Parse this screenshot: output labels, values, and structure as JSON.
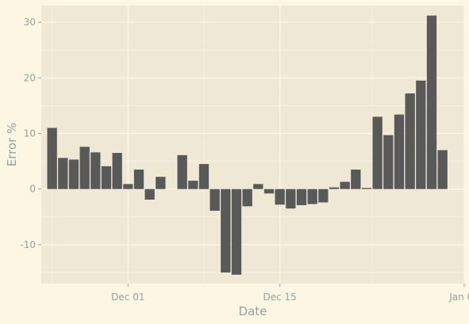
{
  "chart_data": {
    "type": "bar",
    "xlabel": "Date",
    "ylabel": "Error %",
    "colors": {
      "page_background": "#fdf6e3",
      "panel_background": "#eee8d5",
      "grid": "#fdf6e3",
      "bar": "#595959",
      "text": "#93a1a1"
    },
    "grid": true,
    "legend": "none",
    "xlim": [
      "2021-11-23",
      "2022-01-01"
    ],
    "ylim": [
      -17,
      33
    ],
    "x_ticks": [
      {
        "date": "2021-12-01",
        "label": "Dec 01"
      },
      {
        "date": "2021-12-15",
        "label": "Dec 15"
      },
      {
        "date": "2022-01-01",
        "label": "Jan 01"
      }
    ],
    "y_ticks": [
      {
        "value": -10,
        "label": "-10"
      },
      {
        "value": 0,
        "label": "0"
      },
      {
        "value": 10,
        "label": "10"
      },
      {
        "value": 20,
        "label": "20"
      },
      {
        "value": 30,
        "label": "30"
      }
    ],
    "dates": [
      "2021-11-24",
      "2021-11-25",
      "2021-11-26",
      "2021-11-27",
      "2021-11-28",
      "2021-11-29",
      "2021-11-30",
      "2021-12-01",
      "2021-12-02",
      "2021-12-03",
      "2021-12-04",
      "2021-12-05",
      "2021-12-06",
      "2021-12-07",
      "2021-12-08",
      "2021-12-09",
      "2021-12-10",
      "2021-12-11",
      "2021-12-12",
      "2021-12-13",
      "2021-12-14",
      "2021-12-15",
      "2021-12-16",
      "2021-12-17",
      "2021-12-18",
      "2021-12-19",
      "2021-12-20",
      "2021-12-21",
      "2021-12-22",
      "2021-12-23",
      "2021-12-24",
      "2021-12-25",
      "2021-12-26",
      "2021-12-27",
      "2021-12-28",
      "2021-12-29",
      "2021-12-30",
      "2021-12-31"
    ],
    "values": [
      11.0,
      5.6,
      5.3,
      7.6,
      6.6,
      4.1,
      6.5,
      0.9,
      3.5,
      -1.9,
      2.2,
      0.0,
      6.1,
      1.5,
      4.5,
      -3.9,
      -15.0,
      -15.4,
      -3.1,
      0.9,
      -0.8,
      -2.8,
      -3.5,
      -2.9,
      -2.7,
      -2.4,
      0.3,
      1.3,
      3.5,
      0.2,
      13.0,
      9.7,
      13.4,
      17.2,
      19.5,
      31.2,
      7.0,
      0.0
    ]
  }
}
